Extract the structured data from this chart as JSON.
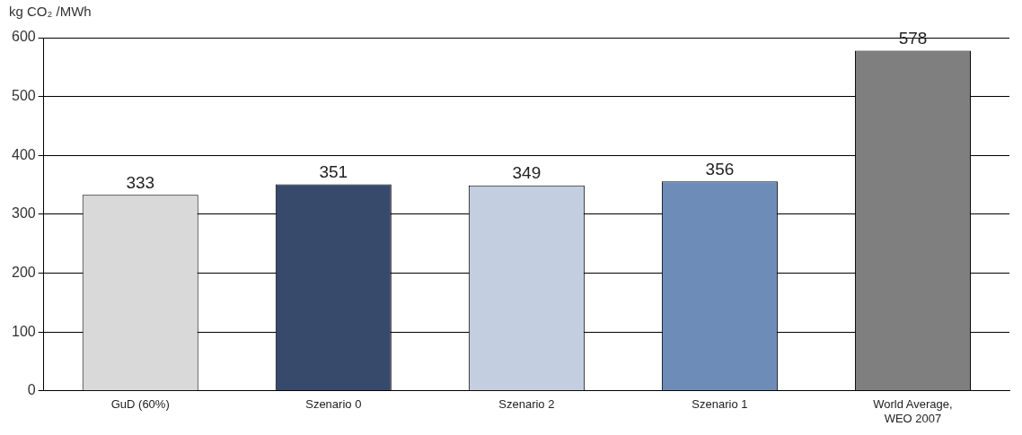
{
  "chart_data": {
    "type": "bar",
    "ylabel": "kg CO₂ /MWh",
    "categories": [
      "GuD (60%)",
      "Szenario 0",
      "Szenario 2",
      "Szenario 1",
      "World Average, WEO 2007"
    ],
    "values": [
      333,
      351,
      349,
      356,
      578
    ],
    "colors": [
      "#d9d9d9",
      "#374a6b",
      "#c3cfe0",
      "#6d8cb8",
      "#7f7f7f"
    ],
    "ylim": [
      0,
      600
    ],
    "yticks": [
      0,
      100,
      200,
      300,
      400,
      500,
      600
    ],
    "grid": "y",
    "legend": false,
    "data_labels": true
  }
}
